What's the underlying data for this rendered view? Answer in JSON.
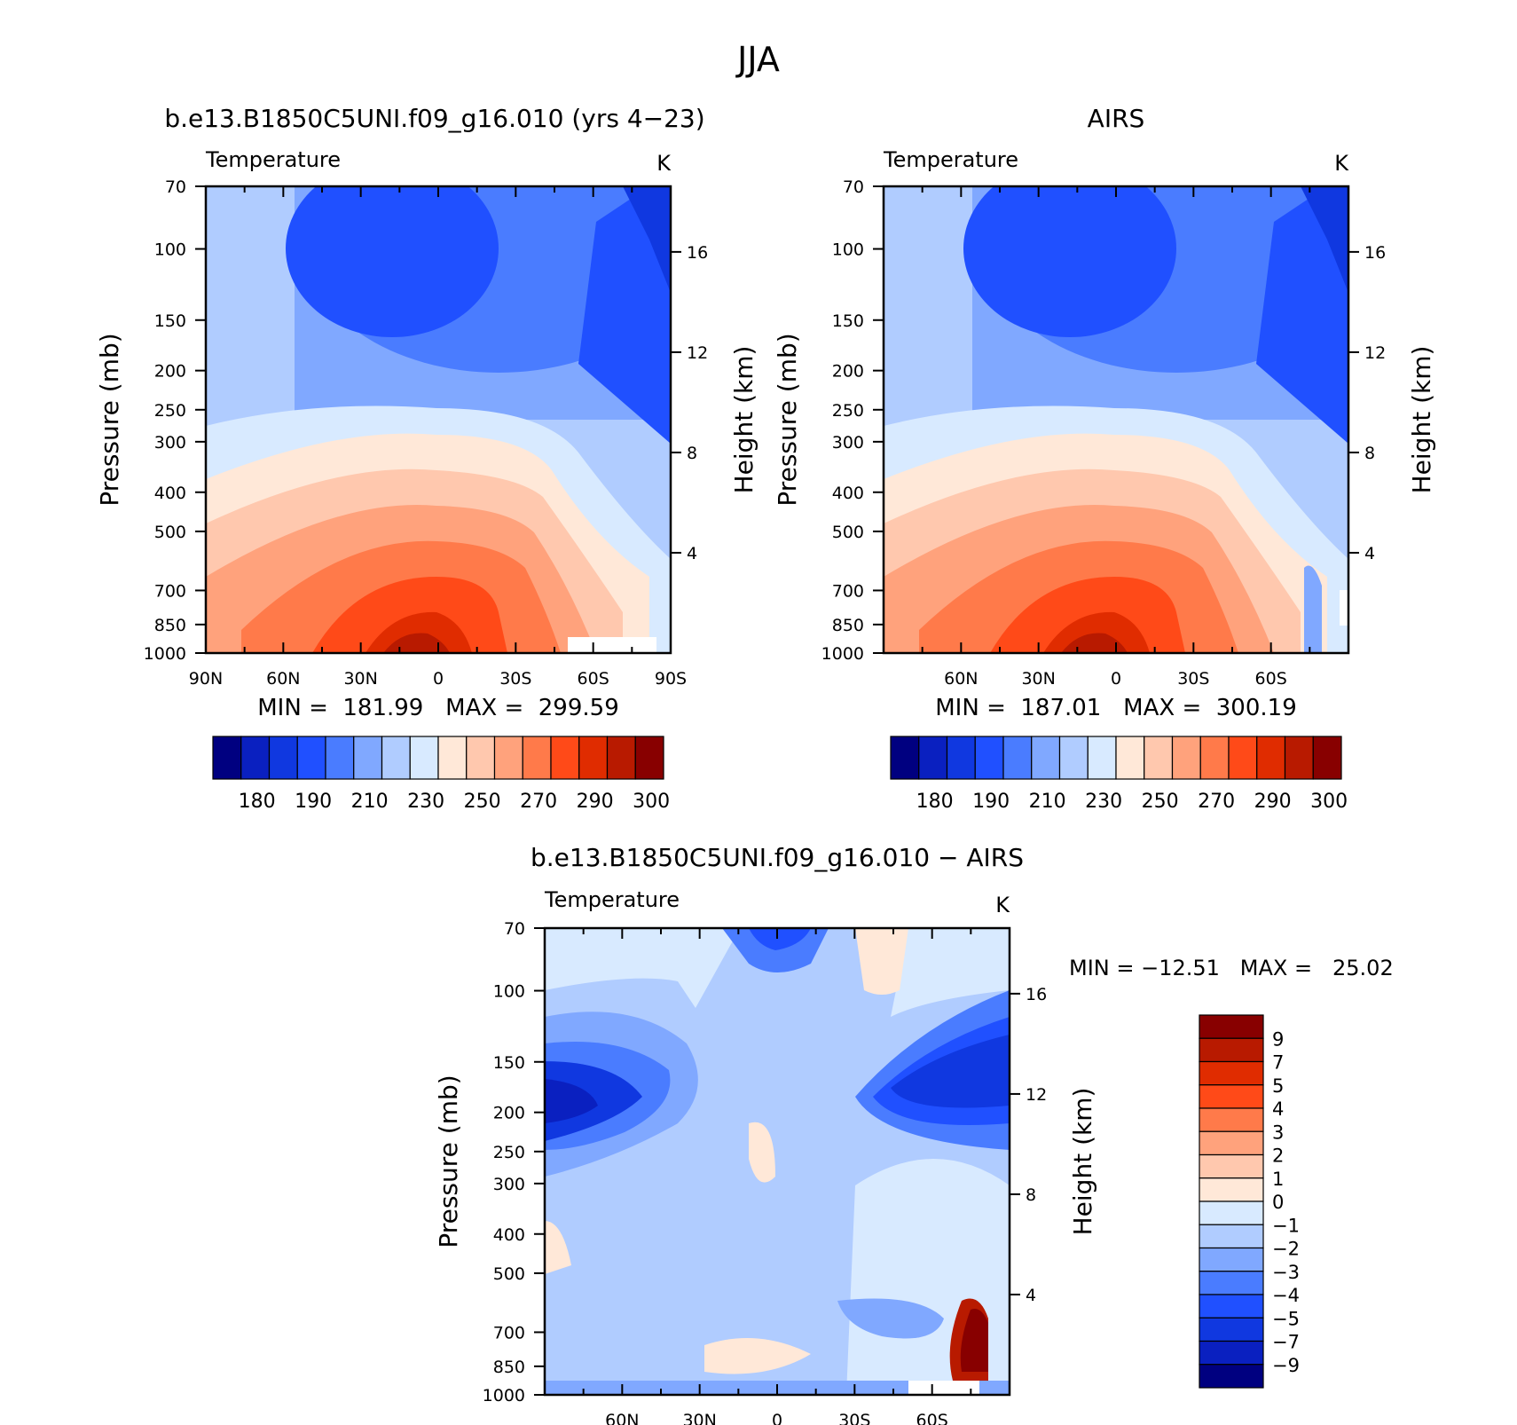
{
  "figure": {
    "title": "JJA"
  },
  "colors": {
    "abs_levels": [
      "#000080",
      "#0a20c0",
      "#1038e0",
      "#2050ff",
      "#4a7cff",
      "#80a8ff",
      "#b0ccff",
      "#d8eaff",
      "#ffe8d8",
      "#ffc8ae",
      "#ffa27c",
      "#ff7a4a",
      "#ff4a18",
      "#e02c00",
      "#b81a00",
      "#880000"
    ],
    "diff_levels": [
      "#000080",
      "#0a20c0",
      "#1038e0",
      "#2050ff",
      "#4a7cff",
      "#80a8ff",
      "#b0ccff",
      "#d8eaff",
      "#ffe8d8",
      "#ffc8ae",
      "#ffa27c",
      "#ff7a4a",
      "#ff4a18",
      "#e02c00",
      "#b81a00",
      "#880000"
    ]
  },
  "chart_data": [
    {
      "type": "heatmap",
      "id": "model",
      "title": "b.e13.B1850C5UNI.f09_g16.010 (yrs 4−23)",
      "variable": "Temperature",
      "units": "K",
      "ylabel": "Pressure (mb)",
      "ylabel_right": "Height (km)",
      "x_ticks": [
        "90N",
        "60N",
        "30N",
        "0",
        "30S",
        "60S",
        "90S"
      ],
      "y_ticks": [
        "70",
        "100",
        "150",
        "200",
        "250",
        "300",
        "400",
        "500",
        "700",
        "850",
        "1000"
      ],
      "height_ticks": [
        "16",
        "12",
        "8",
        "4"
      ],
      "stats": "MIN =  181.99   MAX =  299.59",
      "colorbar": {
        "labels": [
          "180",
          "190",
          "210",
          "230",
          "250",
          "270",
          "290",
          "300"
        ]
      }
    },
    {
      "type": "heatmap",
      "id": "obs",
      "title": "AIRS",
      "variable": "Temperature",
      "units": "K",
      "ylabel": "Pressure (mb)",
      "ylabel_right": "Height (km)",
      "x_ticks": [
        "60N",
        "30N",
        "0",
        "30S",
        "60S"
      ],
      "y_ticks": [
        "70",
        "100",
        "150",
        "200",
        "250",
        "300",
        "400",
        "500",
        "700",
        "850",
        "1000"
      ],
      "height_ticks": [
        "16",
        "12",
        "8",
        "4"
      ],
      "stats": "MIN =  187.01   MAX =  300.19",
      "colorbar": {
        "labels": [
          "180",
          "190",
          "210",
          "230",
          "250",
          "270",
          "290",
          "300"
        ]
      }
    },
    {
      "type": "heatmap",
      "id": "diff",
      "title": "b.e13.B1850C5UNI.f09_g16.010 − AIRS",
      "variable": "Temperature",
      "units": "K",
      "ylabel": "Pressure (mb)",
      "ylabel_right": "Height (km)",
      "x_ticks": [
        "60N",
        "30N",
        "0",
        "30S",
        "60S"
      ],
      "y_ticks": [
        "70",
        "100",
        "150",
        "200",
        "250",
        "300",
        "400",
        "500",
        "700",
        "850",
        "1000"
      ],
      "height_ticks": [
        "16",
        "12",
        "8",
        "4"
      ],
      "stats": "MIN = −12.51   MAX =   25.02",
      "colorbar": {
        "labels": [
          "9",
          "7",
          "5",
          "4",
          "3",
          "2",
          "1",
          "0",
          "−1",
          "−2",
          "−3",
          "−4",
          "−5",
          "−7",
          "−9"
        ]
      }
    }
  ]
}
